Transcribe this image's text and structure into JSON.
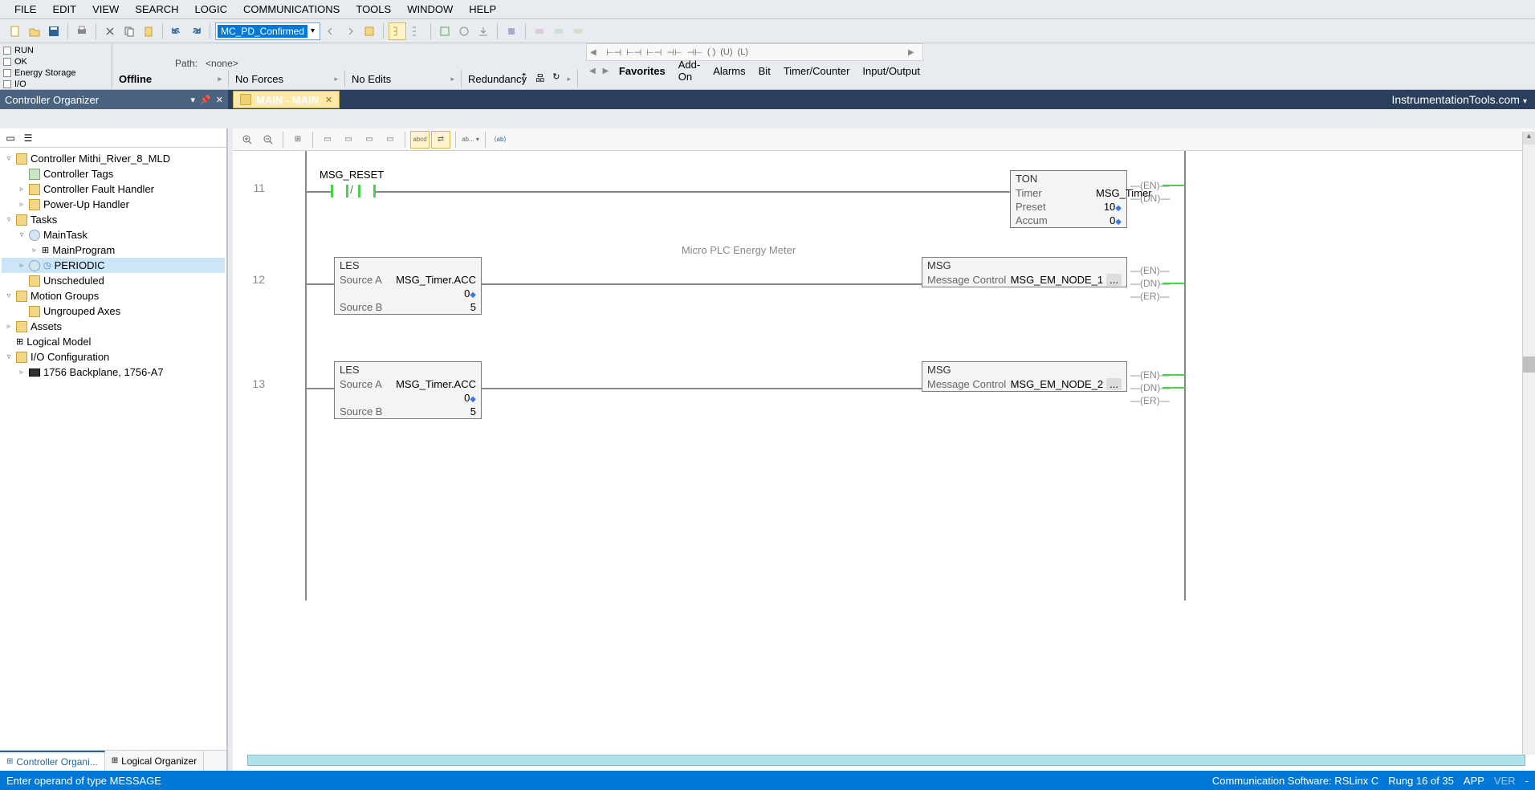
{
  "menu": [
    "FILE",
    "EDIT",
    "VIEW",
    "SEARCH",
    "LOGIC",
    "COMMUNICATIONS",
    "TOOLS",
    "WINDOW",
    "HELP"
  ],
  "combo_text": "MC_PD_Confirmed",
  "status_left": [
    "RUN",
    "OK",
    "Energy Storage",
    "I/O"
  ],
  "status_path_label": "Path:",
  "status_path_value": "<none>",
  "status_cells": [
    "Offline",
    "No Forces",
    "No Edits",
    "Redundancy"
  ],
  "fav_symbols": [
    "⊢⊣",
    "⊢⊣",
    "⊢⊣",
    "⊣⊢",
    "⊣⊢",
    "( )",
    "(U)",
    "(L)"
  ],
  "fav_tabs": [
    "Favorites",
    "Add-On",
    "Alarms",
    "Bit",
    "Timer/Counter",
    "Input/Output"
  ],
  "panel_title": "Controller Organizer",
  "tab_title": "MAIN - MAIN",
  "site_title": "InstrumentationTools.com",
  "tree": [
    {
      "depth": 0,
      "exp": "▿",
      "icon": "folder",
      "label": "Controller Mithi_River_8_MLD"
    },
    {
      "depth": 1,
      "exp": "",
      "icon": "tag",
      "label": "Controller Tags"
    },
    {
      "depth": 1,
      "exp": "▹",
      "icon": "folder",
      "label": "Controller Fault Handler"
    },
    {
      "depth": 1,
      "exp": "▹",
      "icon": "folder",
      "label": "Power-Up Handler"
    },
    {
      "depth": 0,
      "exp": "▿",
      "icon": "folder",
      "label": "Tasks"
    },
    {
      "depth": 1,
      "exp": "▿",
      "icon": "task",
      "label": "MainTask"
    },
    {
      "depth": 2,
      "exp": "▹",
      "icon": "ladder",
      "label": "MainProgram"
    },
    {
      "depth": 1,
      "exp": "▹",
      "icon": "periodic",
      "label": "PERIODIC",
      "selected": true
    },
    {
      "depth": 1,
      "exp": "",
      "icon": "folder",
      "label": "Unscheduled"
    },
    {
      "depth": 0,
      "exp": "▿",
      "icon": "folder",
      "label": "Motion Groups"
    },
    {
      "depth": 1,
      "exp": "",
      "icon": "folder",
      "label": "Ungrouped Axes"
    },
    {
      "depth": 0,
      "exp": "▹",
      "icon": "folder",
      "label": "Assets"
    },
    {
      "depth": 0,
      "exp": "",
      "icon": "ladder",
      "label": "Logical Model"
    },
    {
      "depth": 0,
      "exp": "▿",
      "icon": "folder",
      "label": "I/O Configuration"
    },
    {
      "depth": 1,
      "exp": "▹",
      "icon": "chip",
      "label": "1756 Backplane, 1756-A7"
    }
  ],
  "left_tabs": [
    "Controller Organi...",
    "Logical Organizer"
  ],
  "rung11": {
    "num": "11",
    "contact_label": "MSG_RESET",
    "ton": {
      "title": "TON",
      "rows": [
        {
          "lbl": "Timer",
          "val": "MSG_Timer"
        },
        {
          "lbl": "Preset",
          "val": "10"
        },
        {
          "lbl": "Accum",
          "val": "0"
        }
      ],
      "outs": [
        "EN",
        "DN"
      ]
    }
  },
  "rung12": {
    "num": "12",
    "comment": "Micro PLC Energy Meter",
    "les": {
      "title": "LES",
      "rows": [
        {
          "lbl": "Source A",
          "val": "MSG_Timer.ACC"
        },
        {
          "lbl": "",
          "val": "0"
        },
        {
          "lbl": "Source B",
          "val": "5"
        }
      ]
    },
    "msg": {
      "title": "MSG",
      "rows": [
        {
          "lbl": "Message Control",
          "val": "MSG_EM_NODE_1",
          "dots": true
        }
      ],
      "outs": [
        "EN",
        "DN",
        "ER"
      ]
    }
  },
  "rung13": {
    "num": "13",
    "les": {
      "title": "LES",
      "rows": [
        {
          "lbl": "Source A",
          "val": "MSG_Timer.ACC"
        },
        {
          "lbl": "",
          "val": "0"
        },
        {
          "lbl": "Source B",
          "val": "5"
        }
      ]
    },
    "msg": {
      "title": "MSG",
      "rows": [
        {
          "lbl": "Message Control",
          "val": "MSG_EM_NODE_2",
          "dots": true
        }
      ],
      "outs": [
        "EN",
        "DN",
        "ER"
      ]
    }
  },
  "statusbar": {
    "left": "Enter operand of type MESSAGE",
    "comm": "Communication Software: RSLinx C",
    "rung": "Rung 16 of 35",
    "app": "APP",
    "ver": "VER",
    "dash": "-"
  },
  "colors": {
    "energized": "#4ad34a",
    "box_border": "#7a7a7a",
    "box_bg": "#f4f4f2",
    "rail": "#888888",
    "titlebar": "#2a3f5b",
    "panelheader": "#4a647f",
    "status_blue": "#0078d7",
    "selected": "#cde6f7",
    "tab_bg": "#ffe9a8"
  }
}
